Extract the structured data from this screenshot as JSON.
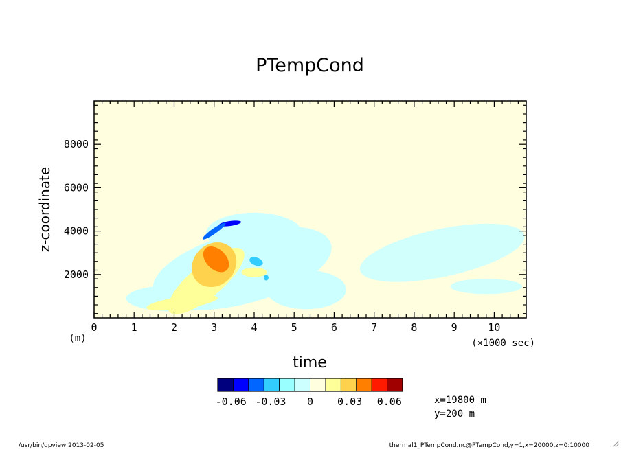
{
  "chart_data": {
    "type": "heatmap",
    "title": "PTempCond",
    "xlabel": "time",
    "ylabel": "z-coordinate",
    "x_unit": "(×1000 sec)",
    "y_unit": "(m)",
    "xlim": [
      0,
      10.8
    ],
    "ylim": [
      0,
      10000
    ],
    "x_ticks": [
      "0",
      "1",
      "2",
      "3",
      "4",
      "5",
      "6",
      "7",
      "8",
      "9",
      "10"
    ],
    "y_ticks": [
      "2000",
      "4000",
      "6000",
      "8000"
    ],
    "grid": false,
    "colorbar": {
      "levels": [
        -0.07,
        -0.06,
        -0.05,
        -0.04,
        -0.03,
        -0.02,
        -0.01,
        0,
        0.01,
        0.02,
        0.03,
        0.04,
        0.05,
        0.06,
        0.07
      ],
      "colors": [
        "#00007f",
        "#0000ff",
        "#0066ff",
        "#33ccff",
        "#99ffff",
        "#ccffff",
        "#ffffe0",
        "#ffff99",
        "#ffd24d",
        "#ff7f00",
        "#ff1a00",
        "#a00000"
      ],
      "tick_labels": [
        "-0.06",
        "-0.03",
        "0",
        "0.03",
        "0.06"
      ],
      "placement": "bottom"
    },
    "features": [
      {
        "x": 3.0,
        "z": 2700,
        "value": 0.045,
        "note": "warm core"
      },
      {
        "x": 3.4,
        "z": 4350,
        "value": -0.05,
        "note": "cold arc at plume top"
      },
      {
        "x": 4.0,
        "z": 2100,
        "value": 0.015,
        "note": "weak warm patch"
      },
      {
        "x": 4.0,
        "z": 3200,
        "value": -0.01,
        "note": "cool envelope"
      },
      {
        "x": 8.5,
        "z": 3000,
        "value": -0.01,
        "note": "late cool region"
      }
    ]
  },
  "info": {
    "coord_x": "x=19800 m",
    "coord_y": "y=200 m",
    "footer_left": "/usr/bin/gpview  2013-02-05",
    "footer_right": "thermal1_PTempCond.nc@PTempCond,y=1,x=20000,z=0:10000"
  }
}
